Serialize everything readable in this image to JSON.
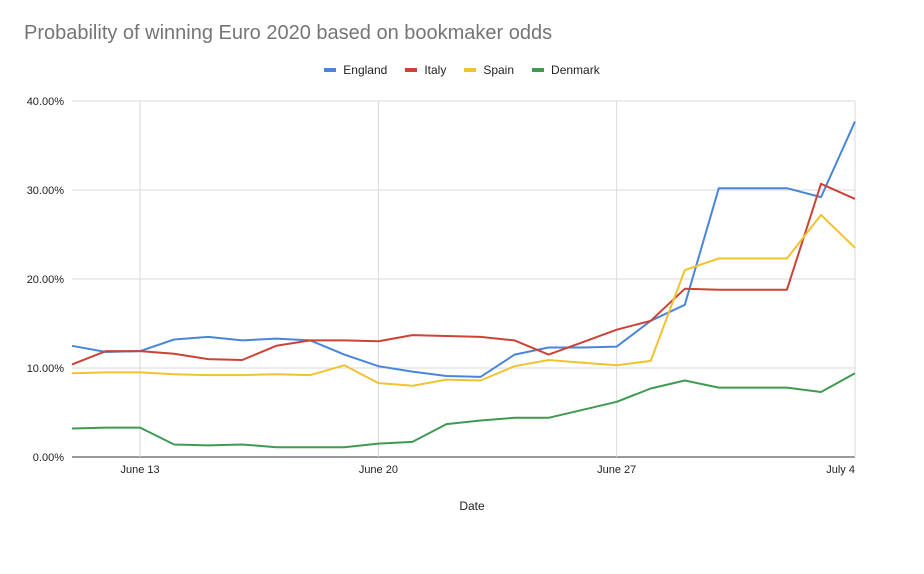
{
  "chart_data": {
    "type": "line",
    "title": "Probability of winning Euro 2020 based on bookmaker odds",
    "xlabel": "Date",
    "ylabel": "",
    "ylim": [
      0,
      40
    ],
    "y_ticks": [
      "0.00%",
      "10.00%",
      "20.00%",
      "30.00%",
      "40.00%"
    ],
    "x_ticks": [
      "June 13",
      "June 20",
      "June 27",
      "July 4"
    ],
    "x": [
      "June 11",
      "June 12",
      "June 13",
      "June 14",
      "June 15",
      "June 16",
      "June 17",
      "June 18",
      "June 19",
      "June 20",
      "June 21",
      "June 22",
      "June 23",
      "June 24",
      "June 25",
      "June 26",
      "June 27",
      "June 28",
      "June 29",
      "June 30",
      "July 1",
      "July 2",
      "July 3",
      "July 4"
    ],
    "legend_position": "top",
    "grid": true,
    "series": [
      {
        "name": "England",
        "color": "#4a86d8",
        "values": [
          12.5,
          11.8,
          11.9,
          13.2,
          13.5,
          13.1,
          13.3,
          13.1,
          11.5,
          10.2,
          9.6,
          9.1,
          9.0,
          11.5,
          12.3,
          12.3,
          12.4,
          15.3,
          17.1,
          30.2,
          30.2,
          30.2,
          29.2,
          37.7
        ]
      },
      {
        "name": "Italy",
        "color": "#cc4335",
        "values": [
          10.4,
          11.9,
          11.9,
          11.6,
          11.0,
          10.9,
          12.5,
          13.1,
          13.1,
          13.0,
          13.7,
          13.6,
          13.5,
          13.1,
          11.5,
          12.9,
          14.3,
          15.3,
          18.9,
          18.8,
          18.8,
          18.8,
          30.7,
          29.0
        ]
      },
      {
        "name": "Spain",
        "color": "#f1c232",
        "values": [
          9.4,
          9.5,
          9.5,
          9.3,
          9.2,
          9.2,
          9.3,
          9.2,
          10.3,
          8.3,
          8.0,
          8.7,
          8.6,
          10.2,
          10.9,
          10.6,
          10.3,
          10.8,
          21.0,
          22.3,
          22.3,
          22.3,
          27.2,
          23.5
        ]
      },
      {
        "name": "Denmark",
        "color": "#3f9a52",
        "values": [
          3.2,
          3.3,
          3.3,
          1.4,
          1.3,
          1.4,
          1.1,
          1.1,
          1.1,
          1.5,
          1.7,
          3.7,
          4.1,
          4.4,
          4.4,
          5.3,
          6.2,
          7.7,
          8.6,
          7.8,
          7.8,
          7.8,
          7.3,
          9.4
        ]
      }
    ]
  }
}
